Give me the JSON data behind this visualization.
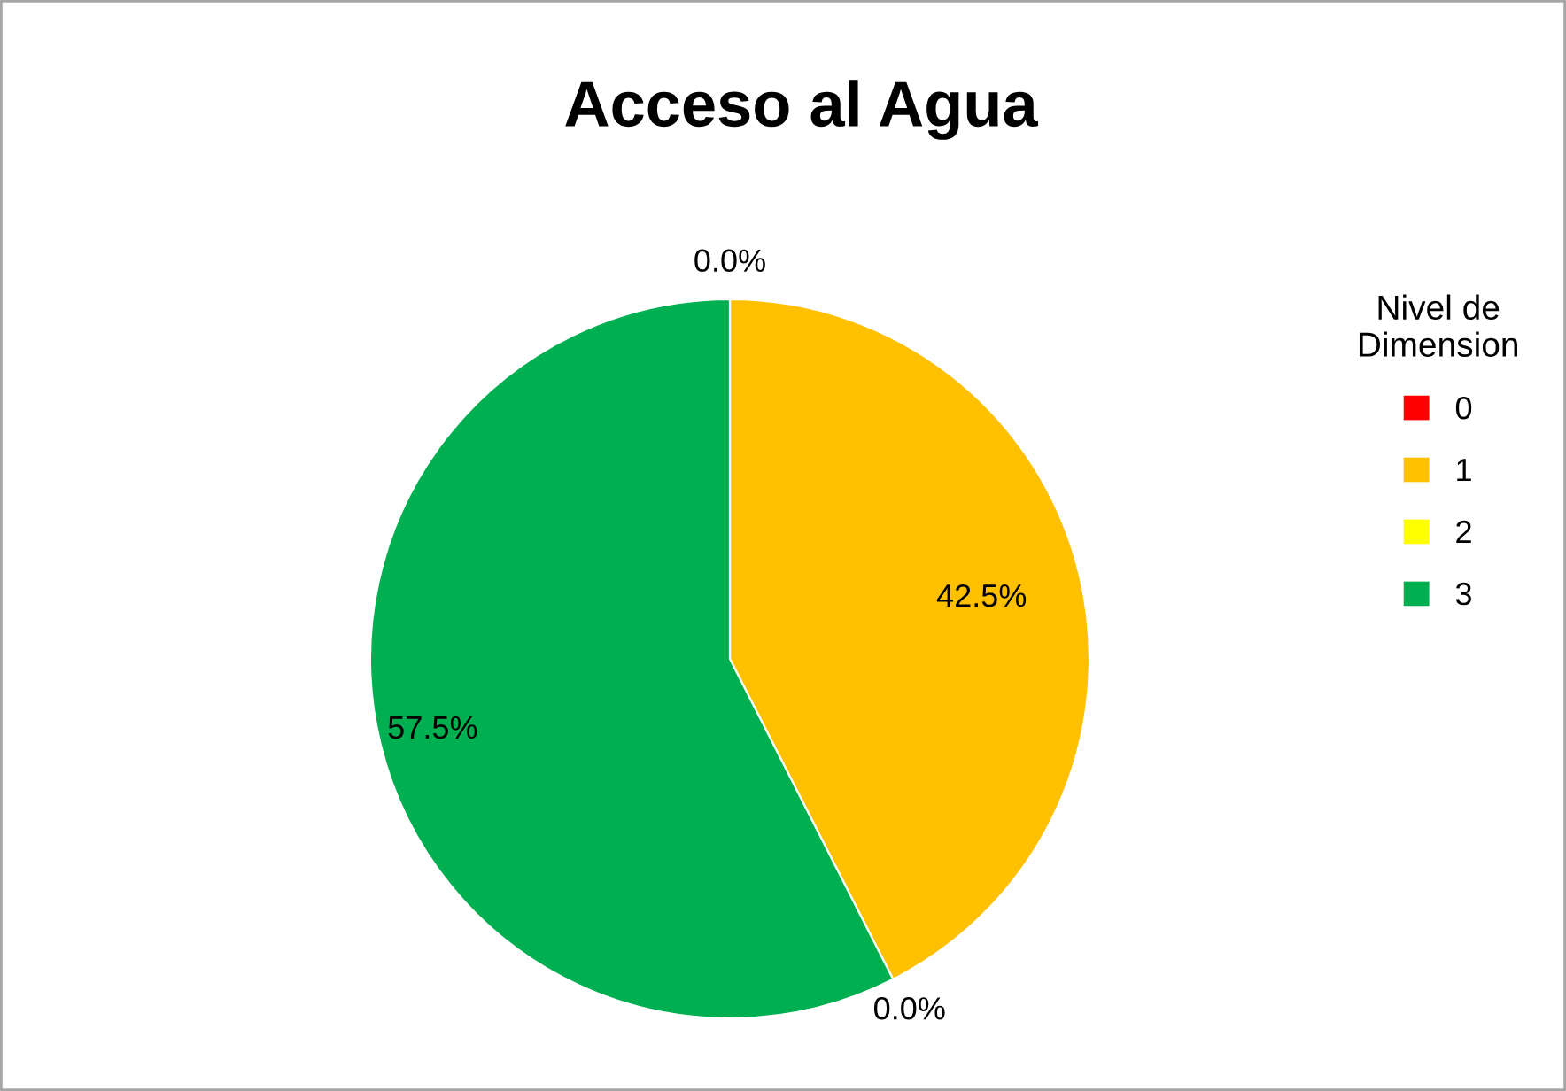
{
  "chart_data": {
    "type": "pie",
    "title": "Acceso al Agua",
    "legend_title": "Nivel de\nDimension",
    "legend": "right",
    "categories": [
      "0",
      "1",
      "2",
      "3"
    ],
    "values": [
      0,
      42.5,
      0,
      57.5
    ],
    "colors": [
      "#ff0000",
      "#ffc000",
      "#ffff00",
      "#00b050"
    ],
    "value_labels": [
      "0.0%",
      "42.5%",
      "0.0%",
      "57.5%"
    ]
  }
}
